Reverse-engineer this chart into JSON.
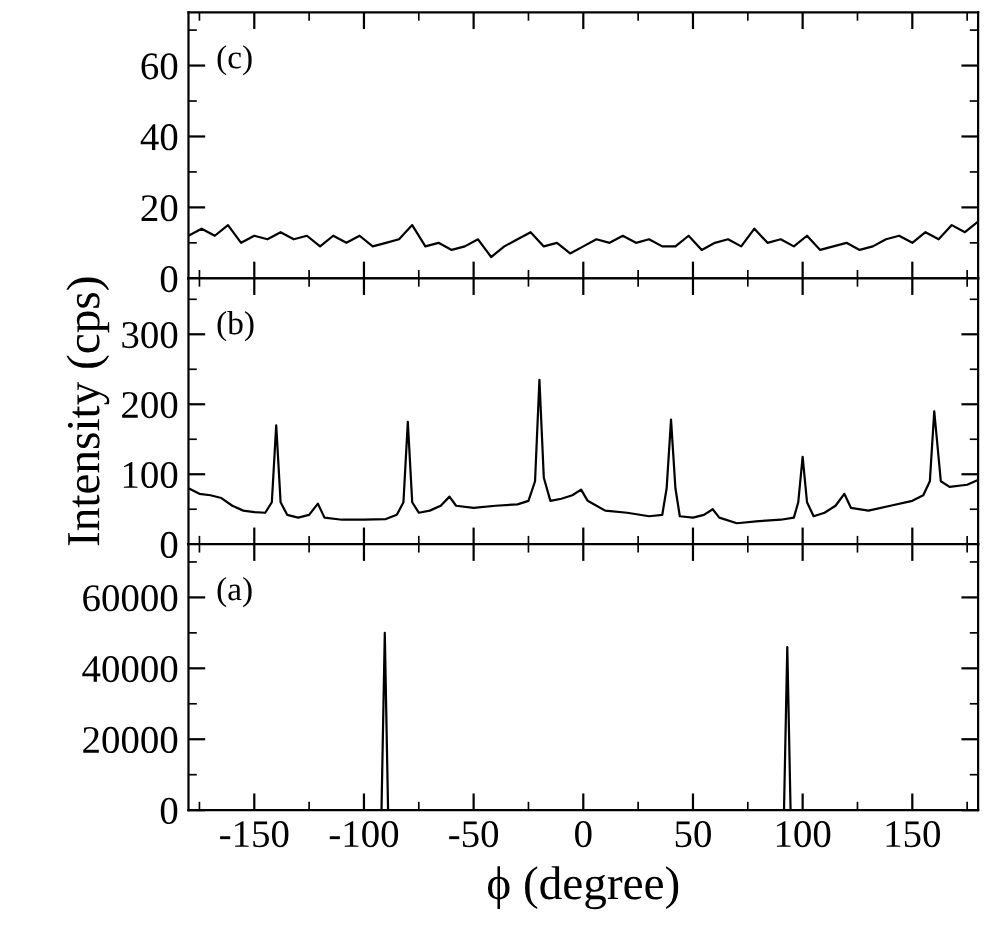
{
  "chart_data": [
    {
      "type": "line",
      "annotations": [
        "(c)"
      ],
      "tick_labels": "y",
      "xlim": [
        -180,
        180
      ],
      "ylim": [
        0,
        75
      ],
      "xticks": [
        {
          "value": -175,
          "label": null
        },
        -150,
        {
          "value": -125,
          "label": null
        },
        -100,
        {
          "value": -75,
          "label": null
        },
        -50,
        {
          "value": -25,
          "label": null
        },
        0,
        {
          "value": 25,
          "label": null
        },
        50,
        {
          "value": 75,
          "label": null
        },
        100,
        {
          "value": 125,
          "label": null
        },
        150,
        {
          "value": 175,
          "label": null
        }
      ],
      "yticks": [
        0,
        {
          "value": 10,
          "label": null
        },
        20,
        {
          "value": 30,
          "label": null
        },
        40,
        {
          "value": 50,
          "label": null
        },
        60,
        {
          "value": 70,
          "label": null
        }
      ],
      "series": [
        {
          "color": "#000000",
          "x": [
            -180,
            -174,
            -168,
            -162,
            -156,
            -150,
            -144,
            -138,
            -132,
            -126,
            -120,
            -114,
            -108,
            -102,
            -96,
            -90,
            -84,
            -78,
            -72,
            -66,
            -60,
            -54,
            -48,
            -42,
            -36,
            -30,
            -24,
            -18,
            -12,
            -6,
            0,
            6,
            12,
            18,
            24,
            30,
            36,
            42,
            48,
            54,
            60,
            66,
            72,
            78,
            84,
            90,
            96,
            102,
            108,
            114,
            120,
            126,
            132,
            138,
            144,
            150,
            156,
            162,
            168,
            174,
            180
          ],
          "values": [
            12,
            14,
            12,
            15,
            10,
            12,
            11,
            13,
            11,
            12,
            9,
            12,
            10,
            12,
            9,
            10,
            11,
            15,
            9,
            10,
            8,
            9,
            11,
            6,
            9,
            11,
            13,
            9,
            10,
            7,
            9,
            11,
            10,
            12,
            10,
            11,
            9,
            9,
            12,
            8,
            10,
            11,
            9,
            14,
            10,
            11,
            9,
            12,
            8,
            9,
            10,
            8,
            9,
            11,
            12,
            10,
            13,
            11,
            15,
            13,
            16
          ]
        }
      ]
    },
    {
      "type": "line",
      "annotations": [
        "(b)"
      ],
      "ylabel": "Intensity (cps)",
      "tick_labels": "y",
      "xlim": [
        -180,
        180
      ],
      "ylim": [
        0,
        380
      ],
      "xticks": [
        {
          "value": -175,
          "label": null
        },
        -150,
        {
          "value": -125,
          "label": null
        },
        -100,
        {
          "value": -75,
          "label": null
        },
        -50,
        {
          "value": -25,
          "label": null
        },
        0,
        {
          "value": 25,
          "label": null
        },
        50,
        {
          "value": 75,
          "label": null
        },
        100,
        {
          "value": 125,
          "label": null
        },
        150,
        {
          "value": 175,
          "label": null
        }
      ],
      "yticks": [
        0,
        {
          "value": 50,
          "label": null
        },
        100,
        {
          "value": 150,
          "label": null
        },
        200,
        {
          "value": 250,
          "label": null
        },
        300,
        {
          "value": 350,
          "label": null
        }
      ],
      "series": [
        {
          "color": "#000000",
          "x": [
            -180,
            -175,
            -170,
            -165,
            -160,
            -155,
            -150,
            -145,
            -142,
            -140,
            -138,
            -135,
            -130,
            -125,
            -121,
            -118,
            -110,
            -100,
            -90,
            -85,
            -82,
            -80,
            -78,
            -75,
            -70,
            -65,
            -61,
            -58,
            -50,
            -40,
            -30,
            -25,
            -22,
            -20,
            -18,
            -15,
            -10,
            -5,
            -1,
            2,
            10,
            20,
            30,
            36,
            38,
            40,
            42,
            44,
            50,
            55,
            59,
            62,
            70,
            80,
            90,
            96,
            98,
            100,
            102,
            105,
            110,
            115,
            119,
            122,
            130,
            140,
            150,
            155,
            158,
            160,
            163,
            167,
            175,
            180
          ],
          "values": [
            80,
            72,
            70,
            66,
            55,
            48,
            46,
            45,
            60,
            170,
            60,
            42,
            38,
            42,
            58,
            38,
            35,
            35,
            36,
            42,
            60,
            175,
            60,
            45,
            48,
            55,
            68,
            55,
            52,
            55,
            57,
            62,
            90,
            235,
            95,
            62,
            65,
            70,
            78,
            62,
            48,
            45,
            40,
            42,
            80,
            178,
            80,
            40,
            38,
            42,
            50,
            38,
            30,
            33,
            35,
            38,
            60,
            125,
            60,
            40,
            45,
            55,
            72,
            52,
            48,
            55,
            62,
            70,
            90,
            190,
            90,
            82,
            85,
            92
          ]
        }
      ]
    },
    {
      "type": "line",
      "annotations": [
        "(a)"
      ],
      "xlabel": "ϕ (degree)",
      "xlim": [
        -180,
        180
      ],
      "ylim": [
        0,
        75000
      ],
      "xticks": [
        {
          "value": -175,
          "label": null
        },
        -150,
        {
          "value": -125,
          "label": null
        },
        -100,
        {
          "value": -75,
          "label": null
        },
        -50,
        {
          "value": -25,
          "label": null
        },
        0,
        {
          "value": 25,
          "label": null
        },
        50,
        {
          "value": 75,
          "label": null
        },
        100,
        {
          "value": 125,
          "label": null
        },
        150,
        {
          "value": 175,
          "label": null
        }
      ],
      "yticks": [
        0,
        {
          "value": 10000,
          "label": null
        },
        20000,
        {
          "value": 30000,
          "label": null
        },
        40000,
        {
          "value": 50000,
          "label": null
        },
        60000,
        {
          "value": 70000,
          "label": null
        }
      ],
      "series": [
        {
          "color": "#000000",
          "x": [
            -180,
            -92,
            -90.5,
            -89,
            91.5,
            93,
            94.5,
            180
          ],
          "values": [
            0,
            0,
            50000,
            0,
            0,
            46000,
            0,
            0
          ]
        }
      ]
    }
  ]
}
